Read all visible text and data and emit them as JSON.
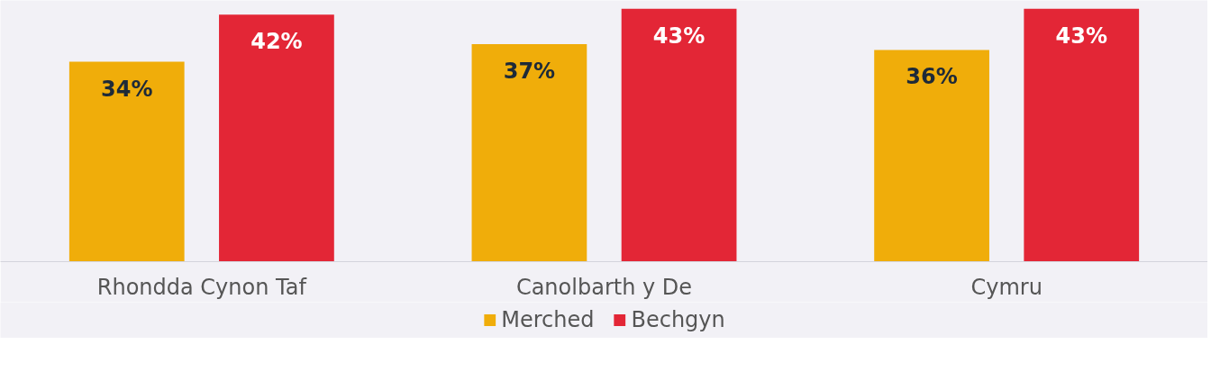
{
  "chart_data": {
    "type": "bar",
    "categories": [
      "Rhondda Cynon Taf",
      "Canolbarth y De",
      "Cymru"
    ],
    "series": [
      {
        "name": "Merched",
        "color": "#f0ad0a",
        "values": [
          34,
          37,
          36
        ],
        "value_labels": [
          "34%",
          "37%",
          "36%"
        ]
      },
      {
        "name": "Bechgyn",
        "color": "#e32636",
        "values": [
          42,
          43,
          43
        ],
        "value_labels": [
          "42%",
          "43%",
          "43%"
        ]
      }
    ],
    "legend": "bottom",
    "grid": false
  }
}
